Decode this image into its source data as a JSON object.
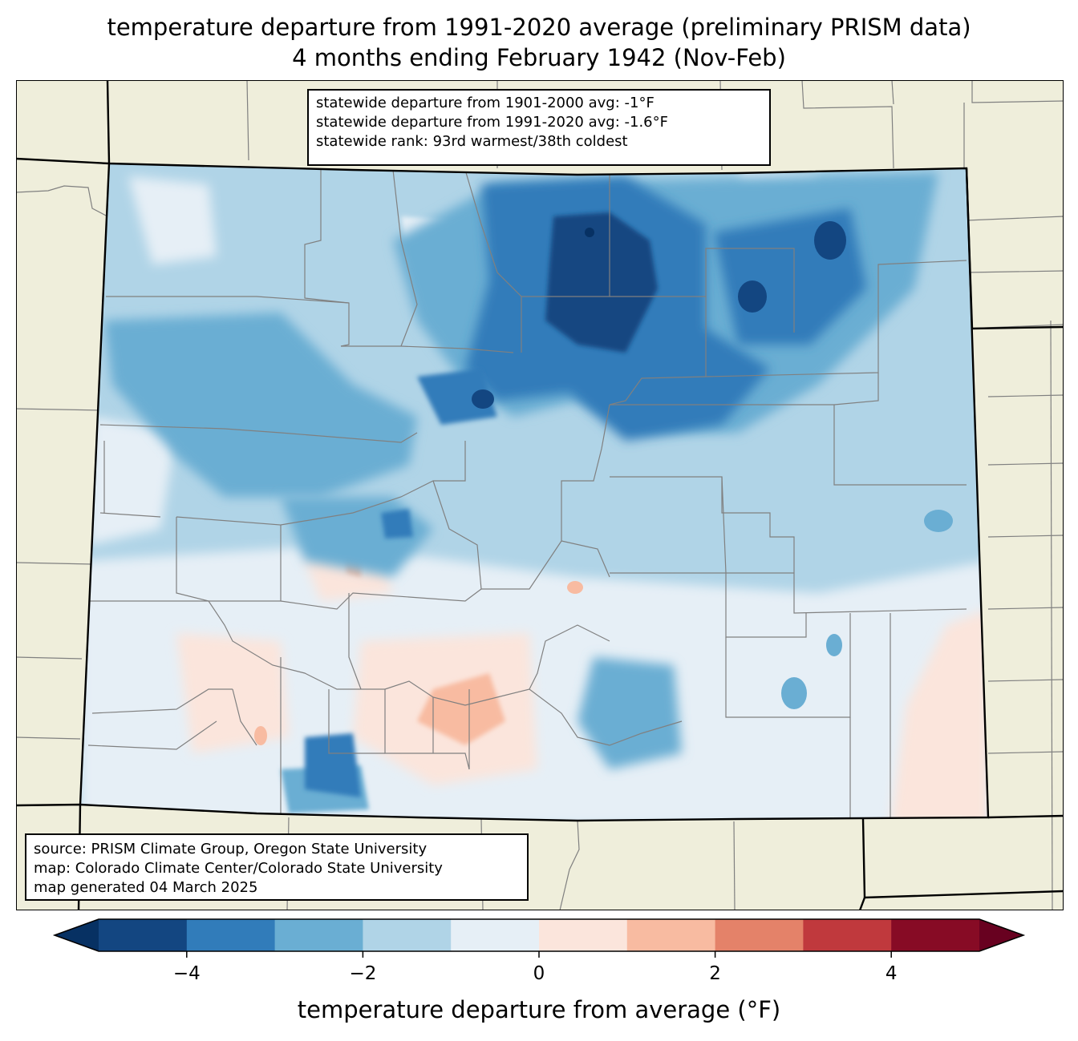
{
  "title": {
    "line1": "temperature departure from 1991-2020 average (preliminary PRISM data)",
    "line2": "4 months ending February 1942 (Nov-Feb)"
  },
  "stats": {
    "line1": "statewide departure from 1901-2000 avg: -1°F",
    "line2": "statewide departure from 1991-2020 avg: -1.6°F",
    "line3": "statewide rank: 93rd warmest/38th coldest"
  },
  "credits": {
    "line1": "source: PRISM Climate Group, Oregon State University",
    "line2": "map: Colorado Climate Center/Colorado State University",
    "line3": "map generated 04 March 2025"
  },
  "colors": {
    "land_outside": "#efeedb",
    "county_lines": "#808080",
    "state_border": "#000000"
  },
  "legend": {
    "label": "temperature departure from average (°F)",
    "min": -5,
    "max": 5,
    "bins": [
      {
        "from": -5,
        "to": -4,
        "color": "#134681"
      },
      {
        "from": -4,
        "to": -3,
        "color": "#317cba"
      },
      {
        "from": -3,
        "to": -2,
        "color": "#6aaed3"
      },
      {
        "from": -2,
        "to": -1,
        "color": "#b0d4e7"
      },
      {
        "from": -1,
        "to": 0,
        "color": "#e6eff6"
      },
      {
        "from": 0,
        "to": 1,
        "color": "#fbe5dc"
      },
      {
        "from": 1,
        "to": 2,
        "color": "#f8bba1"
      },
      {
        "from": 2,
        "to": 3,
        "color": "#e48269"
      },
      {
        "from": 3,
        "to": 4,
        "color": "#c0393d"
      },
      {
        "from": 4,
        "to": 5,
        "color": "#870b25"
      }
    ],
    "under_color": "#073163",
    "over_color": "#680120",
    "ticks": [
      {
        "value": -4,
        "label": "−4"
      },
      {
        "value": -2,
        "label": "−2"
      },
      {
        "value": 0,
        "label": "0"
      },
      {
        "value": 2,
        "label": "2"
      },
      {
        "value": 4,
        "label": "4"
      }
    ]
  }
}
